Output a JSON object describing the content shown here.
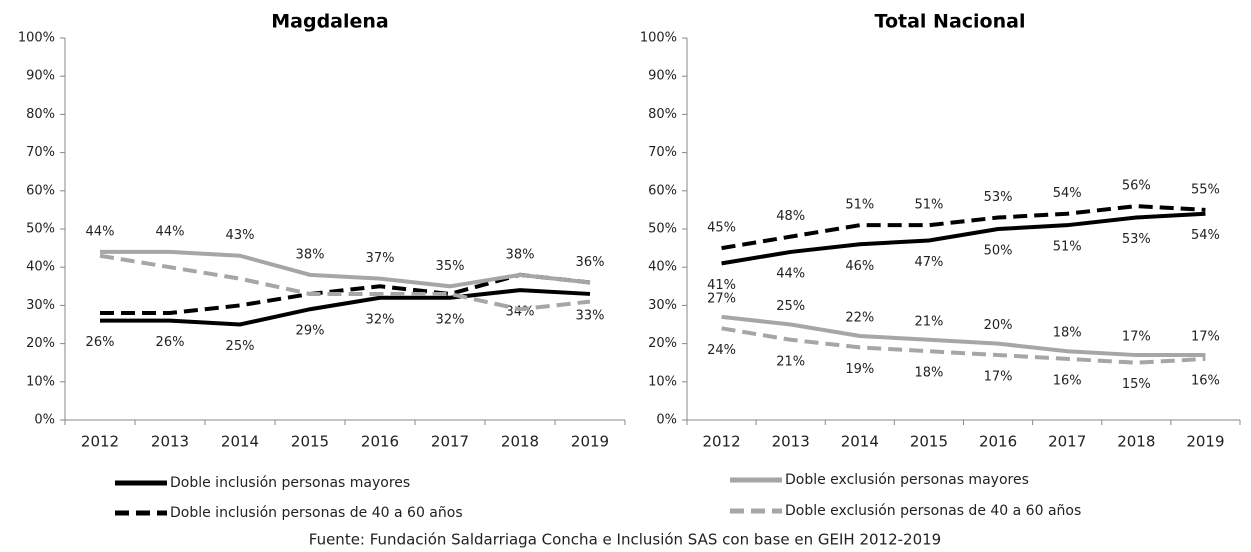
{
  "chart_data": [
    {
      "type": "line",
      "title": "Magdalena",
      "categories": [
        "2012",
        "2013",
        "2014",
        "2015",
        "2016",
        "2017",
        "2018",
        "2019"
      ],
      "ylim": [
        0,
        100
      ],
      "yticks": [
        {
          "value": 0,
          "label": "0%"
        },
        {
          "value": 10,
          "label": "10%"
        },
        {
          "value": 20,
          "label": "20%"
        },
        {
          "value": 30,
          "label": "30%"
        },
        {
          "value": 40,
          "label": "40%"
        },
        {
          "value": 50,
          "label": "50%"
        },
        {
          "value": 60,
          "label": "60%"
        },
        {
          "value": 70,
          "label": "70%"
        },
        {
          "value": 80,
          "label": "80%"
        },
        {
          "value": 90,
          "label": "90%"
        },
        {
          "value": 100,
          "label": "100%"
        }
      ],
      "series": [
        {
          "name": "Doble inclusión personas mayores",
          "color": "#000000",
          "dash": false,
          "values": [
            26,
            26,
            25,
            29,
            32,
            32,
            34,
            33
          ],
          "value_labels": [
            "26%",
            "26%",
            "25%",
            "29%",
            "32%",
            "32%",
            "34%",
            "33%"
          ]
        },
        {
          "name": "Doble inclusión personas de 40 a 60 años",
          "color": "#000000",
          "dash": true,
          "values": [
            28,
            28,
            30,
            33,
            35,
            33,
            38,
            36
          ]
        },
        {
          "name": "Doble exclusión personas mayores",
          "color": "#a6a6a6",
          "dash": false,
          "values": [
            44,
            44,
            43,
            38,
            37,
            35,
            38,
            36
          ],
          "value_labels": [
            "44%",
            "44%",
            "43%",
            "38%",
            "37%",
            "35%",
            "38%",
            "36%"
          ]
        },
        {
          "name": "Doble exclusión personas de 40 a 60 años",
          "color": "#a6a6a6",
          "dash": true,
          "values": [
            43,
            40,
            37,
            33,
            33,
            33,
            29,
            31
          ]
        }
      ]
    },
    {
      "type": "line",
      "title": "Total Nacional",
      "categories": [
        "2012",
        "2013",
        "2014",
        "2015",
        "2016",
        "2017",
        "2018",
        "2019"
      ],
      "ylim": [
        0,
        100
      ],
      "yticks": [
        {
          "value": 0,
          "label": "0%"
        },
        {
          "value": 10,
          "label": "10%"
        },
        {
          "value": 20,
          "label": "20%"
        },
        {
          "value": 30,
          "label": "30%"
        },
        {
          "value": 40,
          "label": "40%"
        },
        {
          "value": 50,
          "label": "50%"
        },
        {
          "value": 60,
          "label": "60%"
        },
        {
          "value": 70,
          "label": "70%"
        },
        {
          "value": 80,
          "label": "80%"
        },
        {
          "value": 90,
          "label": "90%"
        },
        {
          "value": 100,
          "label": "100%"
        }
      ],
      "series": [
        {
          "color": "#000000",
          "dash": false,
          "values": [
            41,
            44,
            46,
            47,
            50,
            51,
            53,
            54
          ],
          "value_labels": [
            "41%",
            "44%",
            "46%",
            "47%",
            "50%",
            "51%",
            "53%",
            "54%"
          ]
        },
        {
          "color": "#000000",
          "dash": true,
          "values": [
            45,
            48,
            51,
            51,
            53,
            54,
            56,
            55
          ],
          "value_labels": [
            "45%",
            "48%",
            "51%",
            "51%",
            "53%",
            "54%",
            "56%",
            "55%"
          ]
        },
        {
          "color": "#a6a6a6",
          "dash": false,
          "values": [
            27,
            25,
            22,
            21,
            20,
            18,
            17,
            17
          ],
          "value_labels": [
            "27%",
            "25%",
            "22%",
            "21%",
            "20%",
            "18%",
            "17%",
            "17%"
          ]
        },
        {
          "color": "#a6a6a6",
          "dash": true,
          "values": [
            24,
            21,
            19,
            18,
            17,
            16,
            15,
            16
          ],
          "value_labels": [
            "24%",
            "21%",
            "19%",
            "18%",
            "17%",
            "16%",
            "15%",
            "16%"
          ]
        }
      ]
    }
  ],
  "source": "Fuente: Fundación Saldarriaga Concha e Inclusión SAS con base en GEIH 2012-2019"
}
